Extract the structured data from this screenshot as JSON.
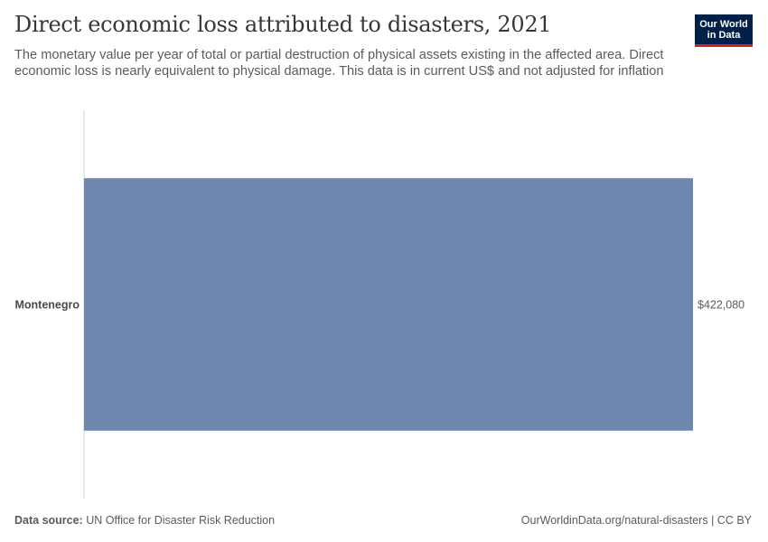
{
  "header": {
    "title": "Direct economic loss attributed to disasters, 2021",
    "subtitle": "The monetary value per year of total or partial destruction of physical assets existing in the affected area. Direct economic loss is nearly equivalent to physical damage. This data is in current US$ and not adjusted for inflation",
    "logo_line1": "Our World",
    "logo_line2": "in Data"
  },
  "footer": {
    "source_label": "Data source:",
    "source_text": "UN Office for Disaster Risk Reduction",
    "link_text": "OurWorldinData.org/natural-disasters | CC BY"
  },
  "colors": {
    "bar": "#6f87ae",
    "axis": "#d0d0d0",
    "logo_bg": "#002147",
    "logo_accent": "#ce261e"
  },
  "chart_data": {
    "type": "bar",
    "orientation": "horizontal",
    "title": "Direct economic loss attributed to disasters, 2021",
    "categories": [
      "Montenegro"
    ],
    "values": [
      422080
    ],
    "value_labels": [
      "$422,080"
    ],
    "xlim": [
      0,
      422080
    ]
  }
}
